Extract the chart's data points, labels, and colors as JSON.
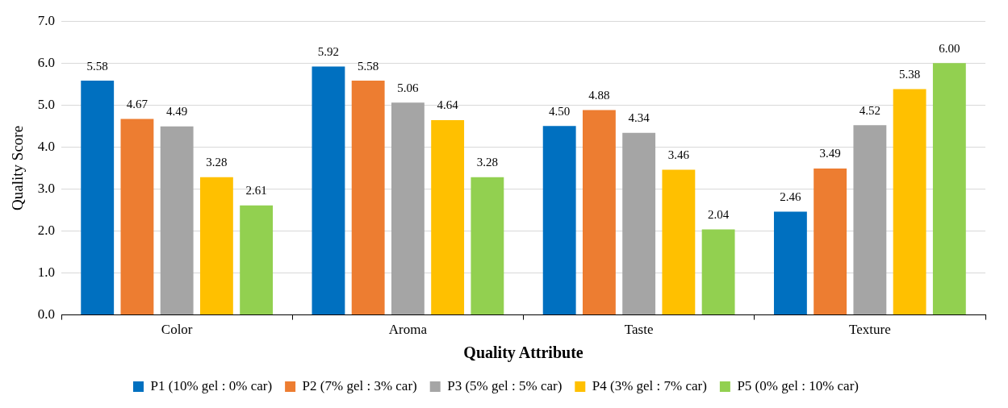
{
  "chart_data": {
    "type": "bar",
    "xlabel": "Quality Attribute",
    "ylabel": "Quality Score",
    "categories": [
      "Color",
      "Aroma",
      "Taste",
      "Texture"
    ],
    "series": [
      {
        "name": "P1 (10% gel : 0% car)",
        "color": "#0070c0",
        "values": [
          5.58,
          5.92,
          4.5,
          2.46
        ],
        "value_labels": [
          "5.58",
          "5.92",
          "4.50",
          "2.46"
        ]
      },
      {
        "name": "P2 (7% gel : 3% car)",
        "color": "#ed7d31",
        "values": [
          4.67,
          5.58,
          4.88,
          3.49
        ],
        "value_labels": [
          "4.67",
          "5.58",
          "4.88",
          "3.49"
        ]
      },
      {
        "name": "P3 (5% gel : 5% car)",
        "color": "#a5a5a5",
        "values": [
          4.49,
          5.06,
          4.34,
          4.52
        ],
        "value_labels": [
          "4.49",
          "5.06",
          "4.34",
          "4.52"
        ]
      },
      {
        "name": "P4 (3% gel : 7% car)",
        "color": "#ffc000",
        "values": [
          3.28,
          4.64,
          3.46,
          5.38
        ],
        "value_labels": [
          "3.28",
          "4.64",
          "3.46",
          "5.38"
        ]
      },
      {
        "name": "P5 (0% gel : 10% car)",
        "color": "#92d050",
        "values": [
          2.61,
          3.28,
          2.04,
          6.0
        ],
        "value_labels": [
          "2.61",
          "3.28",
          "2.04",
          "6.00"
        ]
      }
    ],
    "ylim": [
      0,
      7
    ],
    "yticks": [
      {
        "value": 0,
        "label": "0.0"
      },
      {
        "value": 1,
        "label": "1.0"
      },
      {
        "value": 2,
        "label": "2.0"
      },
      {
        "value": 3,
        "label": "3.0"
      },
      {
        "value": 4,
        "label": "4.0"
      },
      {
        "value": 5,
        "label": "5.0"
      },
      {
        "value": 6,
        "label": "6.0"
      },
      {
        "value": 7,
        "label": "7.0"
      }
    ],
    "grid": "y",
    "legend": "bottom"
  }
}
